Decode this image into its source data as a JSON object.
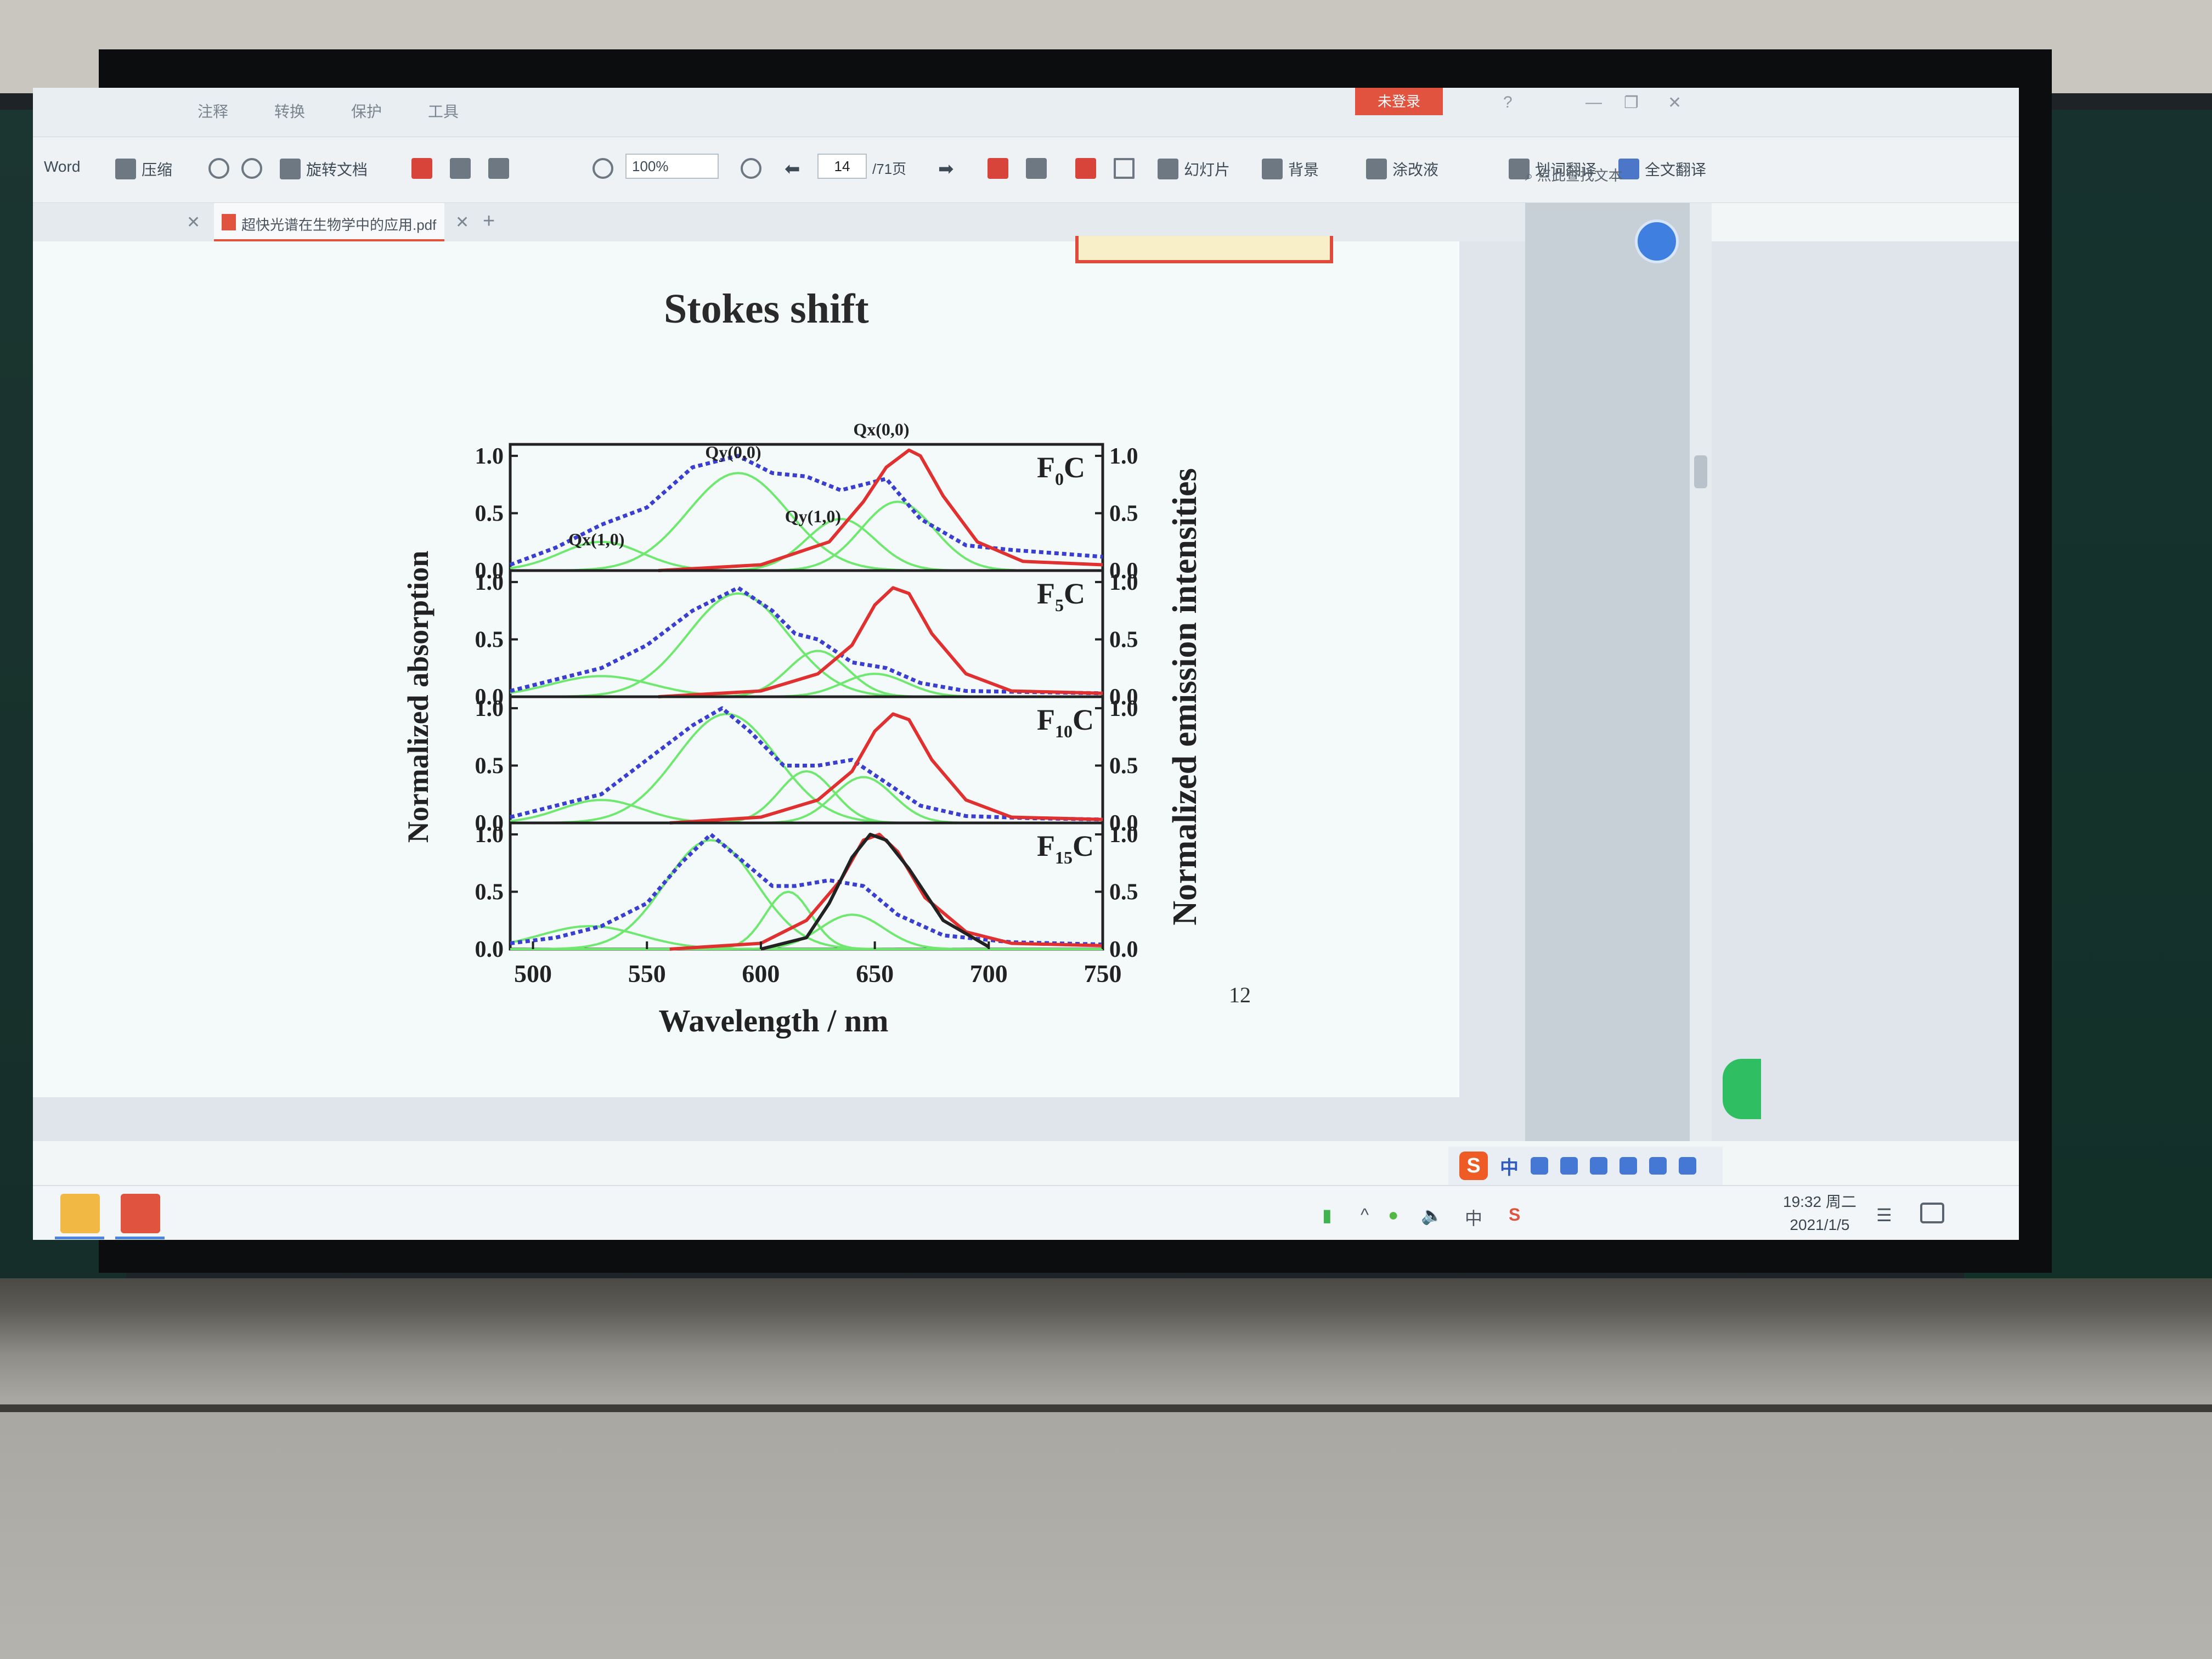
{
  "app": {
    "menu": [
      "注释",
      "转换",
      "保护",
      "工具"
    ],
    "login_label": "未登录",
    "win_controls": [
      "?",
      "—",
      "❐",
      "✕"
    ]
  },
  "toolbar": {
    "word_label": "Word",
    "compress_label": "压缩",
    "rotate_label": "旋转文档",
    "zoom_value": "100%",
    "current_page": "14",
    "total_pages": "/71页",
    "slideshow_label": "幻灯片",
    "background_label": "背景",
    "highlight_label": "涂改液",
    "word_translate_label": "划词翻译",
    "full_translate_label": "全文翻译",
    "search_placeholder": "点此查找文本"
  },
  "tab": {
    "filename": "超快光谱在生物学中的应用.pdf",
    "close": "✕",
    "add": "+"
  },
  "slide": {
    "title": "Stokes shift",
    "page_number": "12"
  },
  "chart_data": {
    "type": "line",
    "title": "Stokes shift",
    "xlabel": "Wavelength /  nm",
    "ylabel_left": "Normalized absorption",
    "ylabel_right": "Normalized emission intensities",
    "xlim": [
      490,
      750
    ],
    "x_ticks": [
      "500",
      "550",
      "600",
      "650",
      "700",
      "750"
    ],
    "y_ticks": [
      "0.0",
      "0.5",
      "1.0"
    ],
    "ylim": [
      0,
      1.1
    ],
    "panels": [
      {
        "label": "F₀C",
        "label_main": "F",
        "label_sub": "0",
        "label_tail": "C",
        "annotations": [
          "Qy(0,0)",
          "Qx(1,0)",
          "Qx(0,0)",
          "Qy(1,0)"
        ],
        "series": [
          {
            "type": "absorption",
            "color": "#3a3fd0",
            "x": [
              490,
              510,
              530,
              550,
              570,
              590,
              605,
              620,
              635,
              645,
              655,
              670,
              690,
              710,
              730,
              750
            ],
            "y": [
              0.05,
              0.2,
              0.4,
              0.55,
              0.9,
              1.0,
              0.85,
              0.82,
              0.7,
              0.75,
              0.8,
              0.45,
              0.22,
              0.18,
              0.15,
              0.12
            ]
          },
          {
            "type": "emission",
            "color": "#e03030",
            "x": [
              555,
              600,
              630,
              645,
              655,
              665,
              670,
              680,
              695,
              715,
              750
            ],
            "y": [
              0.0,
              0.05,
              0.25,
              0.6,
              0.9,
              1.05,
              1.0,
              0.65,
              0.25,
              0.08,
              0.05
            ]
          }
        ],
        "components": [
          [
            530,
            18,
            0.25
          ],
          [
            590,
            22,
            0.85
          ],
          [
            635,
            15,
            0.45
          ],
          [
            660,
            16,
            0.6
          ]
        ]
      },
      {
        "label": "F₅C",
        "label_main": "F",
        "label_sub": "5",
        "label_tail": "C",
        "series": [
          {
            "type": "absorption",
            "color": "#3a3fd0",
            "x": [
              490,
              510,
              530,
              550,
              570,
              590,
              605,
              615,
              625,
              640,
              655,
              670,
              690,
              720,
              750
            ],
            "y": [
              0.05,
              0.15,
              0.25,
              0.45,
              0.75,
              0.95,
              0.75,
              0.55,
              0.5,
              0.3,
              0.25,
              0.12,
              0.05,
              0.04,
              0.03
            ]
          },
          {
            "type": "emission",
            "color": "#e03030",
            "x": [
              555,
              600,
              625,
              640,
              650,
              658,
              665,
              675,
              690,
              710,
              750
            ],
            "y": [
              0.0,
              0.05,
              0.2,
              0.45,
              0.8,
              0.95,
              0.9,
              0.55,
              0.2,
              0.05,
              0.03
            ]
          }
        ],
        "components": [
          [
            530,
            22,
            0.18
          ],
          [
            590,
            22,
            0.9
          ],
          [
            625,
            13,
            0.4
          ],
          [
            650,
            14,
            0.2
          ]
        ]
      },
      {
        "label": "F₁₀C",
        "label_main": "F",
        "label_sub": "10",
        "label_tail": "C",
        "series": [
          {
            "type": "absorption",
            "color": "#3a3fd0",
            "x": [
              490,
              510,
              530,
              550,
              570,
              583,
              595,
              610,
              625,
              640,
              655,
              670,
              690,
              720,
              750
            ],
            "y": [
              0.05,
              0.15,
              0.25,
              0.55,
              0.85,
              1.0,
              0.8,
              0.5,
              0.5,
              0.55,
              0.35,
              0.15,
              0.06,
              0.04,
              0.03
            ]
          },
          {
            "type": "emission",
            "color": "#e03030",
            "x": [
              560,
              600,
              625,
              640,
              650,
              658,
              665,
              675,
              690,
              710,
              750
            ],
            "y": [
              0.0,
              0.05,
              0.2,
              0.45,
              0.8,
              0.95,
              0.9,
              0.55,
              0.2,
              0.05,
              0.03
            ]
          }
        ],
        "components": [
          [
            530,
            18,
            0.2
          ],
          [
            585,
            22,
            0.95
          ],
          [
            620,
            12,
            0.45
          ],
          [
            645,
            13,
            0.4
          ]
        ]
      },
      {
        "label": "F₁₅C",
        "label_main": "F",
        "label_sub": "15",
        "label_tail": "C",
        "series": [
          {
            "type": "absorption",
            "color": "#3a3fd0",
            "x": [
              490,
              510,
              530,
              550,
              565,
              578,
              590,
              605,
              615,
              630,
              645,
              660,
              680,
              710,
              750
            ],
            "y": [
              0.05,
              0.1,
              0.2,
              0.4,
              0.75,
              1.0,
              0.8,
              0.55,
              0.55,
              0.6,
              0.55,
              0.3,
              0.12,
              0.06,
              0.04
            ]
          },
          {
            "type": "emission",
            "color": "#e03030",
            "x": [
              560,
              600,
              620,
              635,
              645,
              652,
              660,
              672,
              690,
              710,
              750
            ],
            "y": [
              0.0,
              0.05,
              0.25,
              0.6,
              0.95,
              1.0,
              0.85,
              0.45,
              0.15,
              0.05,
              0.03
            ]
          },
          {
            "type": "fit",
            "color": "#222222",
            "x": [
              600,
              620,
              630,
              640,
              648,
              655,
              665,
              680,
              700
            ],
            "y": [
              0.0,
              0.1,
              0.4,
              0.8,
              1.0,
              0.95,
              0.7,
              0.25,
              0.02
            ]
          }
        ],
        "components": [
          [
            525,
            22,
            0.2
          ],
          [
            578,
            20,
            0.95
          ],
          [
            612,
            10,
            0.5
          ],
          [
            640,
            14,
            0.3
          ]
        ]
      }
    ]
  },
  "taskbar": {
    "time": "19:32 周二",
    "date": "2021/1/5",
    "ime": "中",
    "ime_bar_text": "中"
  },
  "colors": {
    "accent_red": "#e0533f",
    "absorption": "#3a3fd0",
    "emission": "#e03030",
    "component": "#6ee86e"
  }
}
